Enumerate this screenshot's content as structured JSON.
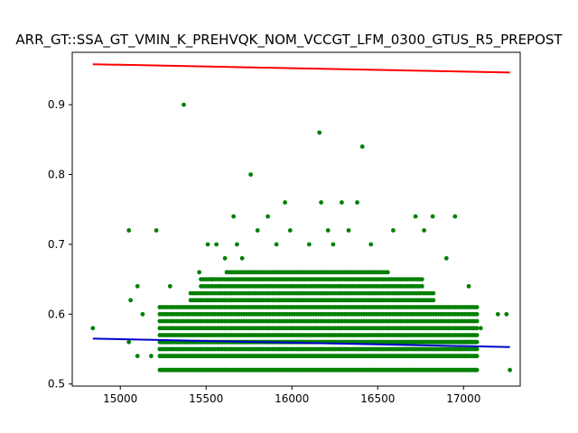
{
  "chart_data": {
    "type": "scatter",
    "title": "ARR_GT::SSA_GT_VMIN_K_PREHVQK_NOM_VCCGT_LFM_0300_GTUS_R5_PREPOST",
    "xlabel": "",
    "ylabel": "",
    "xlim": [
      14720,
      17330
    ],
    "ylim": [
      0.497,
      0.975
    ],
    "xticks": [
      15000,
      15500,
      16000,
      16500,
      17000
    ],
    "xtick_labels": [
      "15000",
      "15500",
      "16000",
      "16500",
      "17000"
    ],
    "yticks": [
      0.5,
      0.6,
      0.7,
      0.8,
      0.9
    ],
    "ytick_labels": [
      "0.5",
      "0.6",
      "0.7",
      "0.8",
      "0.9"
    ],
    "grid": false,
    "colors": {
      "points": "#008000",
      "upper_line": "#ff0000",
      "lower_line": "#0000cc"
    },
    "points": {
      "name": "",
      "x": [
        14840,
        15050,
        15060,
        15100,
        15130,
        15210,
        15290,
        15370,
        15460,
        15510,
        15530,
        15560,
        15610,
        15660,
        15680,
        15710,
        15760,
        15800,
        15860,
        15910,
        15960,
        15990,
        16100,
        16160,
        16170,
        16210,
        16240,
        16290,
        16330,
        16380,
        16410,
        16460,
        16590,
        16720,
        16770,
        16820,
        16900,
        16950,
        17030,
        17100,
        17200,
        17250,
        17270,
        15050,
        15100,
        15180,
        15250,
        15420,
        15610,
        15980,
        16280,
        16480,
        16690,
        16850,
        17010,
        15380,
        15700,
        16050,
        16350,
        16790,
        17040
      ],
      "y": [
        0.58,
        0.72,
        0.62,
        0.64,
        0.6,
        0.72,
        0.64,
        0.9,
        0.66,
        0.7,
        0.65,
        0.7,
        0.68,
        0.74,
        0.7,
        0.68,
        0.8,
        0.72,
        0.74,
        0.7,
        0.76,
        0.72,
        0.7,
        0.86,
        0.76,
        0.72,
        0.7,
        0.76,
        0.72,
        0.76,
        0.84,
        0.7,
        0.72,
        0.74,
        0.72,
        0.74,
        0.68,
        0.74,
        0.64,
        0.58,
        0.6,
        0.6,
        0.52,
        0.56,
        0.54,
        0.54,
        0.52,
        0.52,
        0.52,
        0.52,
        0.52,
        0.52,
        0.52,
        0.52,
        0.54,
        0.56,
        0.56,
        0.56,
        0.56,
        0.56,
        0.56
      ]
    },
    "dense_band": {
      "x_range": [
        15230,
        17080
      ],
      "y_values": [
        0.52,
        0.54,
        0.55,
        0.56,
        0.57,
        0.58,
        0.59,
        0.6,
        0.61,
        0.62,
        0.63,
        0.64,
        0.65,
        0.66
      ]
    },
    "lines": [
      {
        "name": "",
        "x": [
          14840,
          17270
        ],
        "y": [
          0.958,
          0.946
        ]
      },
      {
        "name": "",
        "x": [
          14840,
          17270
        ],
        "y": [
          0.565,
          0.553
        ]
      }
    ]
  }
}
